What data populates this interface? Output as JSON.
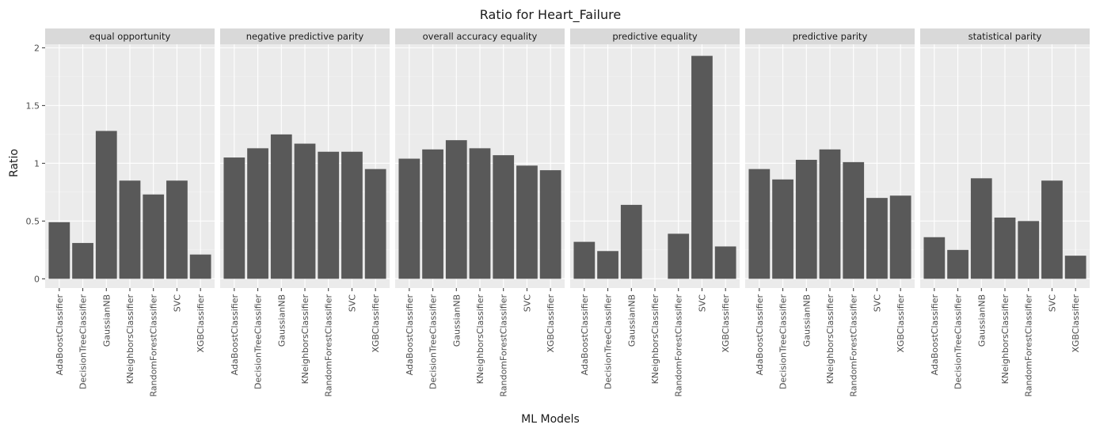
{
  "chart_data": {
    "type": "bar",
    "title": "Ratio for Heart_Failure",
    "xlabel": "ML Models",
    "ylabel": "Ratio",
    "ylim": [
      -0.08,
      2.03
    ],
    "yticks": [
      {
        "value": 0,
        "label": "0"
      },
      {
        "value": 0.5,
        "label": "0.5"
      },
      {
        "value": 1,
        "label": "1"
      },
      {
        "value": 1.5,
        "label": "1.5"
      },
      {
        "value": 2,
        "label": "2"
      }
    ],
    "grid": true,
    "legend": "none",
    "categories": [
      "AdaBoostClassifier",
      "DecisionTreeClassifier",
      "GaussianNB",
      "KNeighborsClassifier",
      "RandomForestClassifier",
      "SVC",
      "XGBClassifier"
    ],
    "panels": [
      {
        "name": "equal opportunity",
        "values": [
          0.49,
          0.31,
          1.28,
          0.85,
          0.73,
          0.85,
          0.21
        ]
      },
      {
        "name": "negative predictive parity",
        "values": [
          1.05,
          1.13,
          1.25,
          1.17,
          1.1,
          1.1,
          0.95
        ]
      },
      {
        "name": "overall accuracy equality",
        "values": [
          1.04,
          1.12,
          1.2,
          1.13,
          1.07,
          0.98,
          0.94
        ]
      },
      {
        "name": "predictive equality",
        "values": [
          0.32,
          0.24,
          0.64,
          0.0,
          0.39,
          1.93,
          0.28
        ]
      },
      {
        "name": "predictive parity",
        "values": [
          0.95,
          0.86,
          1.03,
          1.12,
          1.01,
          0.7,
          0.72
        ]
      },
      {
        "name": "statistical parity",
        "values": [
          0.36,
          0.25,
          0.87,
          0.53,
          0.5,
          0.85,
          0.2
        ]
      }
    ],
    "colors": {
      "bar": "#595959",
      "panel_background": "#ebebeb",
      "strip_background": "#d9d9d9",
      "grid_major": "#ffffff",
      "text": "#1a1a1a",
      "tick_text": "#4d4d4d"
    }
  }
}
